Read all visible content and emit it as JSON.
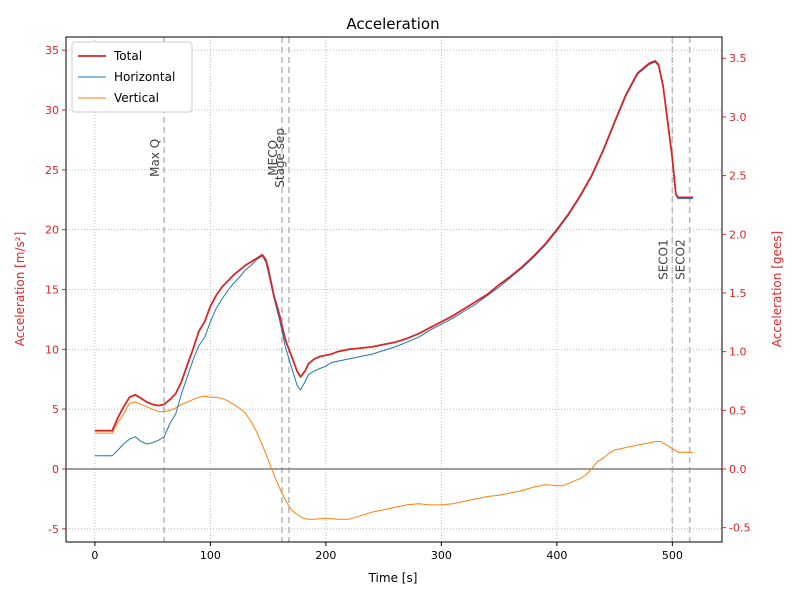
{
  "chart_data": {
    "type": "line",
    "title": "Acceleration",
    "xlabel": "Time [s]",
    "ylabel": "Acceleration [m/s²]",
    "ylabel_right": "Acceleration [gees]",
    "xlim": [
      -25,
      543
    ],
    "ylim": [
      -6.1,
      36.1
    ],
    "ylim_right": [
      -0.622,
      3.681
    ],
    "xticks": [
      0,
      100,
      200,
      300,
      400,
      500
    ],
    "yticks": [
      -5,
      0,
      5,
      10,
      15,
      20,
      25,
      30,
      35
    ],
    "yticks_right": [
      -0.5,
      0.0,
      0.5,
      1.0,
      1.5,
      2.0,
      2.5,
      3.0,
      3.5
    ],
    "grid": true,
    "legend_position": "top-left",
    "colors": {
      "total": "#d62728",
      "horizontal": "#1f77b4",
      "vertical": "#ff7f0e",
      "right_axis": "#d62728",
      "event_line": "#bbbbbb",
      "zero_line": "#808080"
    },
    "events": [
      {
        "t": 60,
        "label": "Max Q",
        "label_y": 26
      },
      {
        "t": 162,
        "label": "MECO",
        "label_y": 26
      },
      {
        "t": 168,
        "label": "Stage sep",
        "label_y": 26
      },
      {
        "t": 500,
        "label": "SECO1",
        "label_y": 17.5
      },
      {
        "t": 515,
        "label": "SECO2",
        "label_y": 17.5
      }
    ],
    "series": [
      {
        "name": "Total",
        "key": "total",
        "points": [
          [
            0,
            3.2
          ],
          [
            10,
            3.2
          ],
          [
            15,
            3.2
          ],
          [
            20,
            4.3
          ],
          [
            25,
            5.2
          ],
          [
            30,
            6.0
          ],
          [
            35,
            6.2
          ],
          [
            40,
            5.9
          ],
          [
            45,
            5.6
          ],
          [
            50,
            5.4
          ],
          [
            55,
            5.3
          ],
          [
            60,
            5.4
          ],
          [
            65,
            5.8
          ],
          [
            70,
            6.3
          ],
          [
            75,
            7.3
          ],
          [
            80,
            8.7
          ],
          [
            85,
            10.0
          ],
          [
            90,
            11.5
          ],
          [
            95,
            12.3
          ],
          [
            100,
            13.6
          ],
          [
            105,
            14.5
          ],
          [
            110,
            15.2
          ],
          [
            115,
            15.7
          ],
          [
            120,
            16.2
          ],
          [
            125,
            16.6
          ],
          [
            130,
            17.0
          ],
          [
            135,
            17.3
          ],
          [
            140,
            17.6
          ],
          [
            145,
            17.9
          ],
          [
            148,
            17.5
          ],
          [
            150,
            16.8
          ],
          [
            155,
            14.5
          ],
          [
            160,
            12.8
          ],
          [
            165,
            10.8
          ],
          [
            170,
            9.5
          ],
          [
            175,
            8.2
          ],
          [
            178,
            7.7
          ],
          [
            182,
            8.2
          ],
          [
            185,
            8.8
          ],
          [
            190,
            9.2
          ],
          [
            195,
            9.4
          ],
          [
            200,
            9.5
          ],
          [
            205,
            9.6
          ],
          [
            210,
            9.8
          ],
          [
            220,
            10.0
          ],
          [
            230,
            10.1
          ],
          [
            240,
            10.2
          ],
          [
            250,
            10.4
          ],
          [
            260,
            10.6
          ],
          [
            270,
            10.9
          ],
          [
            280,
            11.3
          ],
          [
            290,
            11.8
          ],
          [
            300,
            12.3
          ],
          [
            310,
            12.8
          ],
          [
            320,
            13.4
          ],
          [
            330,
            14.0
          ],
          [
            340,
            14.6
          ],
          [
            350,
            15.4
          ],
          [
            360,
            16.1
          ],
          [
            370,
            16.9
          ],
          [
            380,
            17.8
          ],
          [
            390,
            18.8
          ],
          [
            400,
            20.0
          ],
          [
            410,
            21.3
          ],
          [
            420,
            22.8
          ],
          [
            430,
            24.5
          ],
          [
            440,
            26.6
          ],
          [
            450,
            29.0
          ],
          [
            460,
            31.3
          ],
          [
            470,
            33.1
          ],
          [
            480,
            33.9
          ],
          [
            485,
            34.1
          ],
          [
            488,
            33.8
          ],
          [
            492,
            32.0
          ],
          [
            496,
            29.0
          ],
          [
            500,
            26.0
          ],
          [
            503,
            23.0
          ],
          [
            505,
            22.7
          ],
          [
            510,
            22.7
          ],
          [
            518,
            22.7
          ]
        ]
      },
      {
        "name": "Horizontal",
        "key": "horizontal",
        "points": [
          [
            0,
            1.1
          ],
          [
            10,
            1.1
          ],
          [
            15,
            1.1
          ],
          [
            20,
            1.6
          ],
          [
            25,
            2.1
          ],
          [
            30,
            2.5
          ],
          [
            35,
            2.7
          ],
          [
            40,
            2.3
          ],
          [
            45,
            2.1
          ],
          [
            50,
            2.2
          ],
          [
            55,
            2.4
          ],
          [
            60,
            2.7
          ],
          [
            65,
            3.8
          ],
          [
            70,
            4.6
          ],
          [
            75,
            6.3
          ],
          [
            80,
            7.7
          ],
          [
            85,
            9.1
          ],
          [
            90,
            10.3
          ],
          [
            95,
            11.0
          ],
          [
            100,
            12.3
          ],
          [
            105,
            13.4
          ],
          [
            110,
            14.2
          ],
          [
            115,
            14.9
          ],
          [
            120,
            15.5
          ],
          [
            125,
            16.0
          ],
          [
            130,
            16.6
          ],
          [
            135,
            17.0
          ],
          [
            140,
            17.5
          ],
          [
            145,
            17.8
          ],
          [
            148,
            17.3
          ],
          [
            150,
            16.5
          ],
          [
            155,
            14.3
          ],
          [
            160,
            12.4
          ],
          [
            165,
            10.2
          ],
          [
            170,
            8.6
          ],
          [
            175,
            7.0
          ],
          [
            178,
            6.6
          ],
          [
            182,
            7.3
          ],
          [
            185,
            7.9
          ],
          [
            190,
            8.2
          ],
          [
            195,
            8.4
          ],
          [
            200,
            8.6
          ],
          [
            205,
            8.9
          ],
          [
            210,
            9.0
          ],
          [
            220,
            9.2
          ],
          [
            230,
            9.4
          ],
          [
            240,
            9.6
          ],
          [
            250,
            9.9
          ],
          [
            260,
            10.2
          ],
          [
            270,
            10.6
          ],
          [
            280,
            11.0
          ],
          [
            290,
            11.6
          ],
          [
            300,
            12.1
          ],
          [
            310,
            12.6
          ],
          [
            320,
            13.2
          ],
          [
            330,
            13.8
          ],
          [
            340,
            14.5
          ],
          [
            350,
            15.2
          ],
          [
            360,
            16.0
          ],
          [
            370,
            16.8
          ],
          [
            380,
            17.7
          ],
          [
            390,
            18.7
          ],
          [
            400,
            19.9
          ],
          [
            410,
            21.2
          ],
          [
            420,
            22.7
          ],
          [
            430,
            24.4
          ],
          [
            440,
            26.5
          ],
          [
            450,
            28.9
          ],
          [
            460,
            31.2
          ],
          [
            470,
            33.0
          ],
          [
            480,
            33.8
          ],
          [
            485,
            34.0
          ],
          [
            488,
            33.7
          ],
          [
            492,
            31.9
          ],
          [
            496,
            28.9
          ],
          [
            500,
            25.9
          ],
          [
            503,
            22.9
          ],
          [
            505,
            22.6
          ],
          [
            510,
            22.6
          ],
          [
            518,
            22.6
          ]
        ]
      },
      {
        "name": "Vertical",
        "key": "vertical",
        "points": [
          [
            0,
            3.0
          ],
          [
            10,
            3.0
          ],
          [
            15,
            3.0
          ],
          [
            20,
            3.9
          ],
          [
            25,
            4.6
          ],
          [
            30,
            5.5
          ],
          [
            35,
            5.6
          ],
          [
            40,
            5.4
          ],
          [
            45,
            5.2
          ],
          [
            50,
            5.0
          ],
          [
            55,
            4.8
          ],
          [
            60,
            4.8
          ],
          [
            65,
            4.9
          ],
          [
            70,
            5.1
          ],
          [
            75,
            5.4
          ],
          [
            80,
            5.6
          ],
          [
            85,
            5.8
          ],
          [
            90,
            6.0
          ],
          [
            95,
            6.1
          ],
          [
            100,
            6.0
          ],
          [
            105,
            6.0
          ],
          [
            110,
            5.9
          ],
          [
            115,
            5.7
          ],
          [
            120,
            5.4
          ],
          [
            125,
            5.1
          ],
          [
            130,
            4.7
          ],
          [
            135,
            4.0
          ],
          [
            140,
            3.1
          ],
          [
            145,
            2.0
          ],
          [
            150,
            0.8
          ],
          [
            155,
            -0.5
          ],
          [
            160,
            -1.6
          ],
          [
            165,
            -2.6
          ],
          [
            170,
            -3.4
          ],
          [
            175,
            -3.8
          ],
          [
            180,
            -4.1
          ],
          [
            185,
            -4.2
          ],
          [
            190,
            -4.2
          ],
          [
            200,
            -4.1
          ],
          [
            210,
            -4.2
          ],
          [
            220,
            -4.2
          ],
          [
            230,
            -3.9
          ],
          [
            240,
            -3.6
          ],
          [
            250,
            -3.4
          ],
          [
            260,
            -3.2
          ],
          [
            270,
            -3.0
          ],
          [
            280,
            -2.9
          ],
          [
            290,
            -3.0
          ],
          [
            300,
            -3.0
          ],
          [
            310,
            -2.9
          ],
          [
            320,
            -2.7
          ],
          [
            330,
            -2.5
          ],
          [
            340,
            -2.3
          ],
          [
            350,
            -2.2
          ],
          [
            360,
            -2.0
          ],
          [
            370,
            -1.8
          ],
          [
            380,
            -1.5
          ],
          [
            390,
            -1.3
          ],
          [
            400,
            -1.4
          ],
          [
            405,
            -1.4
          ],
          [
            410,
            -1.2
          ],
          [
            420,
            -0.8
          ],
          [
            425,
            -0.5
          ],
          [
            430,
            0.0
          ],
          [
            435,
            0.6
          ],
          [
            440,
            0.9
          ],
          [
            445,
            1.3
          ],
          [
            450,
            1.6
          ],
          [
            455,
            1.7
          ],
          [
            460,
            1.8
          ],
          [
            465,
            1.9
          ],
          [
            470,
            2.0
          ],
          [
            475,
            2.1
          ],
          [
            480,
            2.2
          ],
          [
            485,
            2.3
          ],
          [
            490,
            2.3
          ],
          [
            495,
            2.0
          ],
          [
            500,
            1.7
          ],
          [
            505,
            1.4
          ],
          [
            510,
            1.4
          ],
          [
            518,
            1.4
          ]
        ]
      }
    ]
  }
}
